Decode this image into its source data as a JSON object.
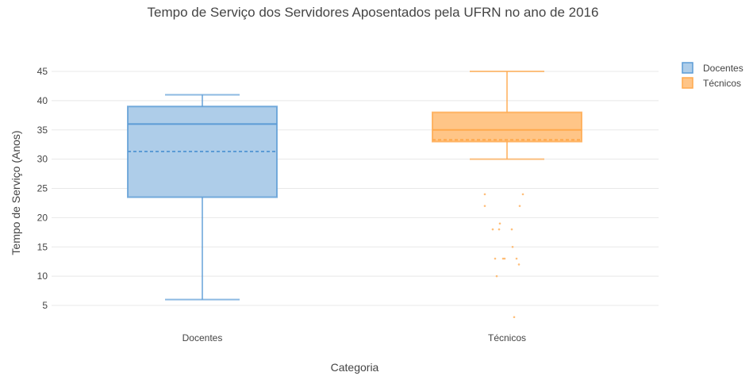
{
  "chart_data": {
    "type": "box",
    "title": "Tempo de Serviço dos Servidores Aposentados pela UFRN no ano de 2016",
    "xlabel": "Categoria",
    "ylabel": "Tempo de Serviço (Anos)",
    "categories": [
      "Docentes",
      "Técnicos"
    ],
    "y_ticks": [
      5,
      10,
      15,
      20,
      25,
      30,
      35,
      40,
      45
    ],
    "ylim": [
      1.5,
      48
    ],
    "grid": true,
    "legend_position": "top-right",
    "series": [
      {
        "name": "Docentes",
        "color": "#5b9bd5",
        "fill": "#aecde9",
        "min": 6,
        "q1": 23.5,
        "median": 36,
        "mean": 31.3,
        "q3": 39,
        "max": 41,
        "outliers": []
      },
      {
        "name": "Técnicos",
        "color": "#ffa94d",
        "fill": "#ffc587",
        "min": 30,
        "q1": 33,
        "median": 35,
        "mean": 33.3,
        "q3": 38,
        "max": 45,
        "outliers": [
          24,
          24,
          22,
          22,
          19,
          18,
          18,
          18,
          15,
          13,
          13,
          13,
          13,
          12,
          10,
          3
        ]
      }
    ]
  }
}
